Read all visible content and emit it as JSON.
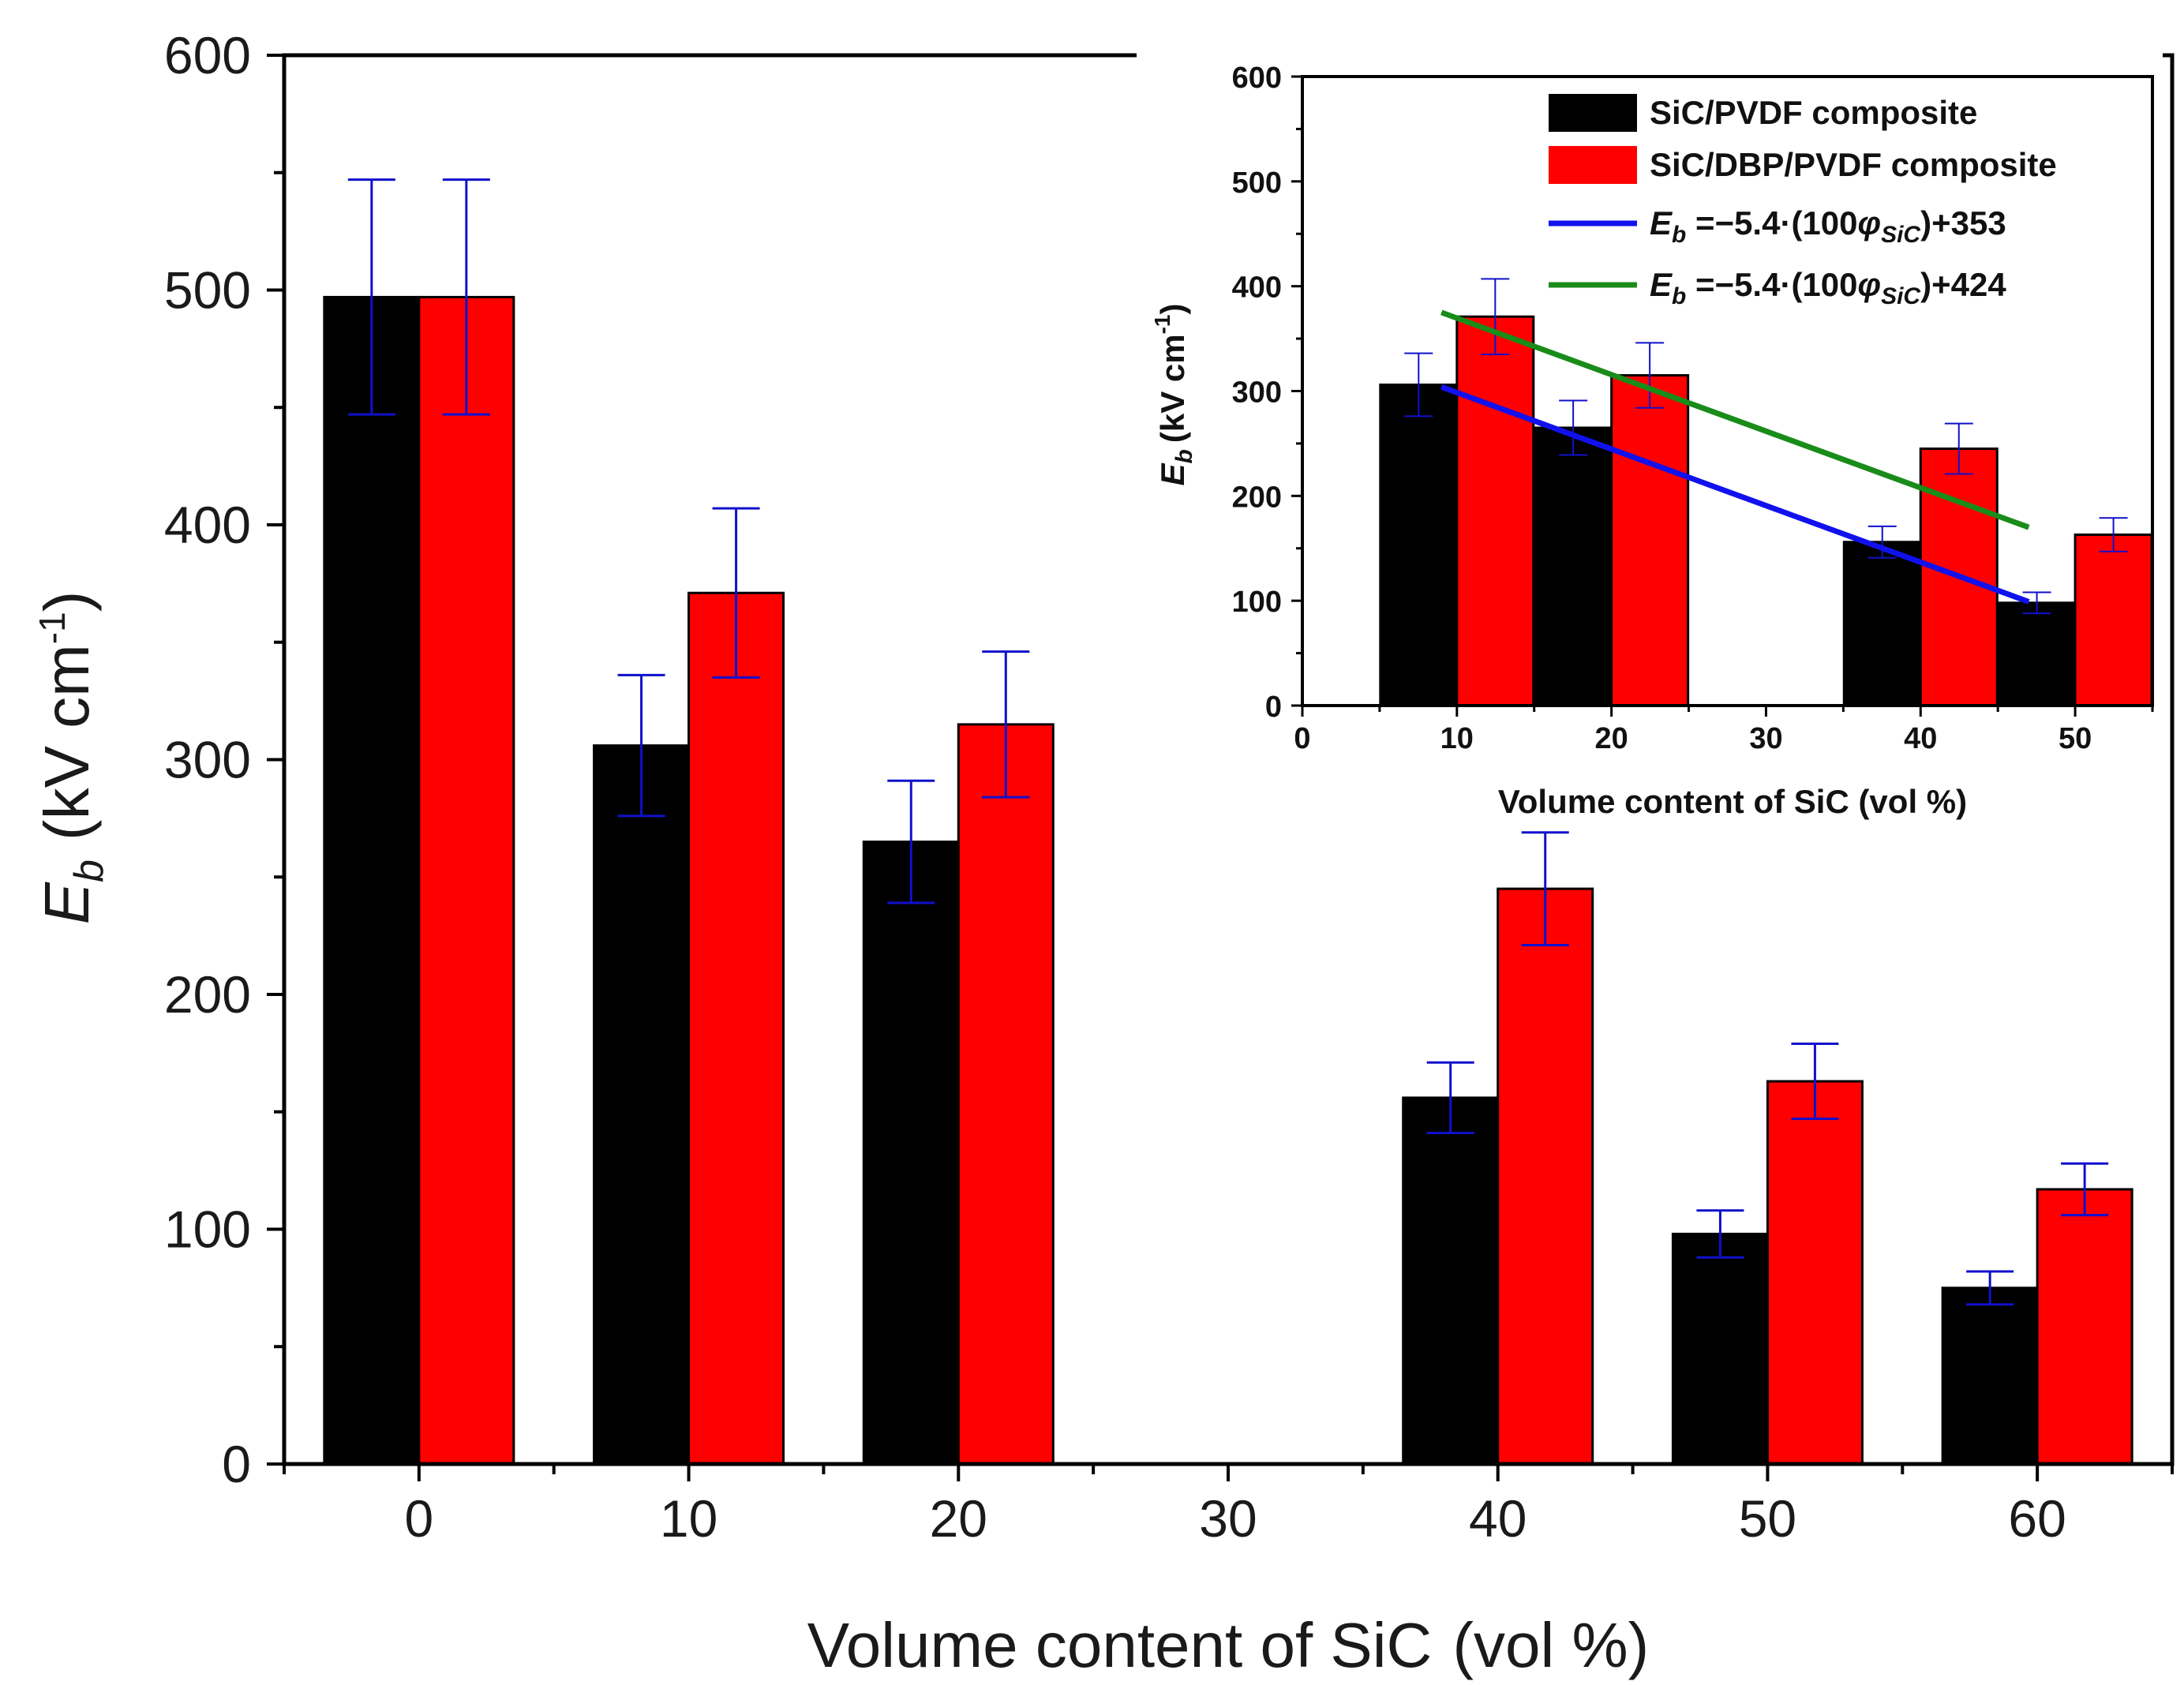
{
  "chart_data": [
    {
      "type": "bar",
      "title": "",
      "xlabel": "Volume content of SiC",
      "xlabel_unit": "(vol %)",
      "ylabel_symbol": "E",
      "ylabel_sub": "b",
      "ylabel_unit_a": "(kV cm",
      "ylabel_unit_exp": "-1",
      "ylabel_unit_b": ")",
      "x_ticks": [
        "0",
        "10",
        "20",
        "30",
        "40",
        "50",
        "60"
      ],
      "xlim": [
        -5,
        65
      ],
      "ylim": [
        0,
        600
      ],
      "y_ticks": [
        "0",
        "100",
        "200",
        "300",
        "400",
        "500",
        "600"
      ],
      "grid": false,
      "categories": [
        0,
        10,
        20,
        40,
        50,
        60
      ],
      "series": [
        {
          "name": "SiC/PVDF composite",
          "color": "#000000",
          "values": [
            497,
            306,
            265,
            156,
            98,
            75
          ],
          "errors": [
            50,
            30,
            26,
            15,
            10,
            7
          ]
        },
        {
          "name": "SiC/DBP/PVDF composite",
          "color": "#ff0000",
          "values": [
            497,
            371,
            315,
            245,
            163,
            117
          ],
          "errors": [
            50,
            36,
            31,
            24,
            16,
            11
          ]
        }
      ],
      "error_color": "#1010cc"
    },
    {
      "type": "bar",
      "title": "",
      "xlabel": "Volume content of SiC (vol %)",
      "ylabel_symbol": "E",
      "ylabel_sub": "b",
      "ylabel_unit_a": "(kV cm",
      "ylabel_unit_exp": "-1",
      "ylabel_unit_b": ")",
      "x_ticks": [
        "0",
        "10",
        "20",
        "30",
        "40",
        "50"
      ],
      "xlim": [
        0,
        55
      ],
      "ylim": [
        0,
        600
      ],
      "y_ticks": [
        "0",
        "100",
        "200",
        "300",
        "400",
        "500",
        "600"
      ],
      "categories": [
        10,
        20,
        40,
        50
      ],
      "series": [
        {
          "name": "SiC/PVDF composite",
          "color": "#000000",
          "values": [
            306,
            265,
            156,
            98
          ],
          "errors": [
            30,
            26,
            15,
            10
          ]
        },
        {
          "name": "SiC/DBP/PVDF composite",
          "color": "#ff0000",
          "values": [
            371,
            315,
            245,
            163
          ],
          "errors": [
            36,
            31,
            24,
            16
          ]
        }
      ],
      "fit_lines": [
        {
          "name_pre": "E",
          "name_sub": "b",
          "name_mid": " =−5.4·(100",
          "name_phi": "φ",
          "name_phisub": "SiC",
          "name_post": ")+353",
          "color": "#1111ee",
          "x": [
            9,
            47
          ],
          "y": [
            304,
            99
          ]
        },
        {
          "name_pre": "E",
          "name_sub": "b",
          "name_mid": " =−5.4·(100",
          "name_phi": "φ",
          "name_phisub": "SiC",
          "name_post": ")+424",
          "color": "#198c19",
          "x": [
            9,
            47
          ],
          "y": [
            375,
            170
          ]
        }
      ],
      "legend_position": "top-right",
      "error_color": "#1010cc"
    }
  ]
}
